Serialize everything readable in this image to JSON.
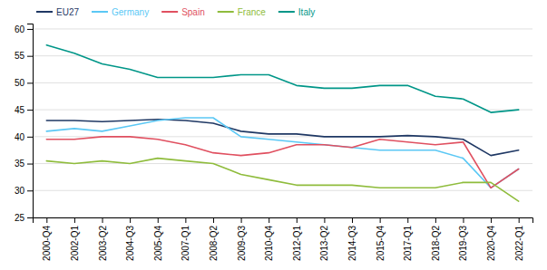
{
  "chart_data": {
    "type": "line",
    "categories": [
      "2000-Q4",
      "2002-Q1",
      "2003-Q2",
      "2004-Q3",
      "2005-Q4",
      "2007-Q1",
      "2008-Q2",
      "2009-Q3",
      "2010-Q4",
      "2012-Q1",
      "2013-Q2",
      "2014-Q3",
      "2015-Q4",
      "2017-Q1",
      "2018-Q2",
      "2019-Q3",
      "2020-Q4",
      "2022-Q1"
    ],
    "series": [
      {
        "name": "EU27",
        "color": "#1f3864",
        "values": [
          43.0,
          43.0,
          42.8,
          43.0,
          43.2,
          43.0,
          42.5,
          41.0,
          40.5,
          40.5,
          40.0,
          40.0,
          40.0,
          40.2,
          40.0,
          39.5,
          36.5,
          37.5
        ]
      },
      {
        "name": "Germany",
        "color": "#5bc8f5",
        "values": [
          41.0,
          41.5,
          41.0,
          42.0,
          43.0,
          43.5,
          43.5,
          40.0,
          39.5,
          39.0,
          38.5,
          38.0,
          37.5,
          37.5,
          37.5,
          36.0,
          30.5,
          34.0
        ]
      },
      {
        "name": "Spain",
        "color": "#e05060",
        "values": [
          39.5,
          39.5,
          40.0,
          40.0,
          39.5,
          38.5,
          37.0,
          36.5,
          37.0,
          38.5,
          38.5,
          38.0,
          39.5,
          39.0,
          38.5,
          39.0,
          30.5,
          34.0
        ]
      },
      {
        "name": "France",
        "color": "#8fbc3c",
        "values": [
          35.5,
          35.0,
          35.5,
          35.0,
          36.0,
          35.5,
          35.0,
          33.0,
          32.0,
          31.0,
          31.0,
          31.0,
          30.5,
          30.5,
          30.5,
          31.5,
          31.5,
          28.0
        ]
      },
      {
        "name": "Italy",
        "color": "#009688",
        "values": [
          57.0,
          55.5,
          53.5,
          52.5,
          51.0,
          51.0,
          51.0,
          51.5,
          51.5,
          49.5,
          49.0,
          49.0,
          49.5,
          49.5,
          47.5,
          47.0,
          44.5,
          45.0
        ]
      }
    ],
    "ylim": [
      25,
      61
    ],
    "yticks": [
      25,
      30,
      35,
      40,
      45,
      50,
      55,
      60
    ],
    "grid": true,
    "legend": "upper left"
  }
}
